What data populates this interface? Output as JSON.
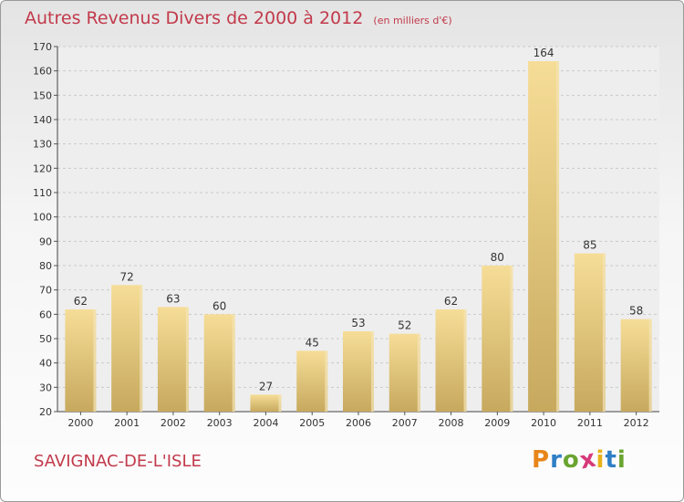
{
  "chart_data": {
    "type": "bar",
    "title": "Autres Revenus Divers de 2000 à 2012",
    "subtitle": "(en milliers d'€)",
    "categories": [
      "2000",
      "2001",
      "2002",
      "2003",
      "2004",
      "2005",
      "2006",
      "2007",
      "2008",
      "2009",
      "2010",
      "2011",
      "2012"
    ],
    "values": [
      62,
      72,
      63,
      60,
      27,
      45,
      53,
      52,
      62,
      80,
      164,
      85,
      58
    ],
    "ylim": [
      20,
      170
    ],
    "yticks": [
      20,
      30,
      40,
      50,
      60,
      70,
      80,
      90,
      100,
      110,
      120,
      130,
      140,
      150,
      160,
      170
    ],
    "grid": true,
    "bar_color": "#e8c97e"
  },
  "footer": {
    "location": "SAVIGNAC-DE-L'ISLE",
    "logo_text": "Proxiti",
    "logo_colors": [
      "#e8851a",
      "#2f7fc6",
      "#6aa431",
      "#d63a7a",
      "#e8b21a",
      "#2f7fc6",
      "#6aa431"
    ]
  }
}
